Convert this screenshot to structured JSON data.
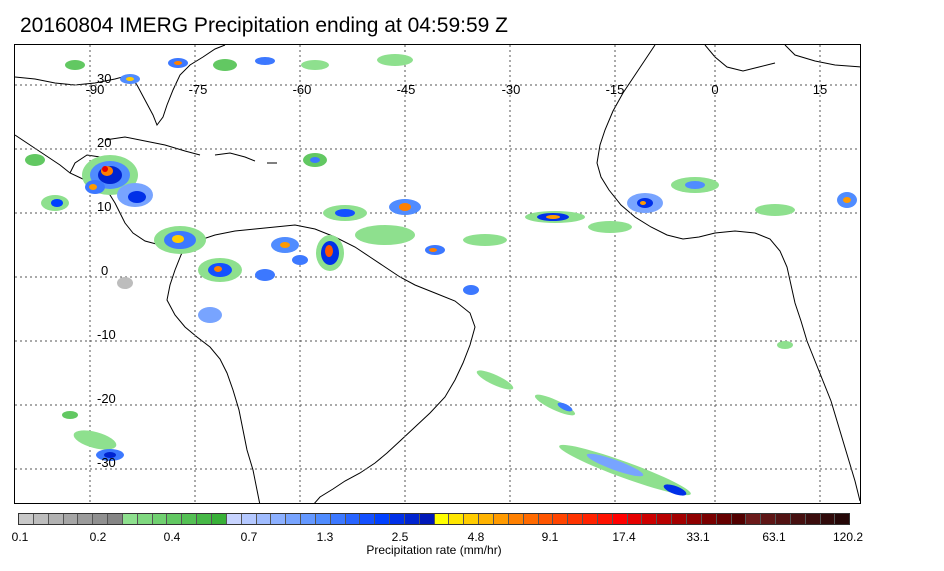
{
  "title": "20160804 IMERG Precipitation ending at 04:59:59 Z",
  "map": {
    "lon_labels": [
      "-90",
      "-75",
      "-60",
      "-45",
      "-30",
      "-15",
      "0",
      "15"
    ],
    "lat_labels": [
      "30",
      "20",
      "10",
      "0",
      "-10",
      "-20",
      "-30"
    ]
  },
  "colorbar": {
    "label": "Precipitation rate (mm/hr)",
    "tick_labels": [
      "0.1",
      "0.2",
      "0.4",
      "0.7",
      "1.3",
      "2.5",
      "4.8",
      "9.1",
      "17.4",
      "33.1",
      "63.1",
      "120.2"
    ],
    "colors": [
      "#c8c8c8",
      "#bdbdbd",
      "#b2b2b2",
      "#a6a6a6",
      "#9b9b9b",
      "#909090",
      "#858585",
      "#8ee08e",
      "#7fd87f",
      "#70d070",
      "#62c862",
      "#54c054",
      "#46b846",
      "#38b038",
      "#c8d4ff",
      "#b4c8ff",
      "#a0bcff",
      "#8cb0ff",
      "#78a4ff",
      "#6498ff",
      "#508cff",
      "#3c78ff",
      "#2864ff",
      "#1450ff",
      "#0040ff",
      "#0030e8",
      "#0024d0",
      "#0018b8",
      "#ffff00",
      "#ffe600",
      "#ffcc00",
      "#ffb300",
      "#ff9a00",
      "#ff8000",
      "#ff6a00",
      "#ff5500",
      "#ff4400",
      "#ff3300",
      "#ff2200",
      "#ff1100",
      "#ff0000",
      "#e60000",
      "#cc0000",
      "#b80000",
      "#a30000",
      "#8f0000",
      "#7a0000",
      "#660000",
      "#520000",
      "#6b1a1a",
      "#5e1616",
      "#521313",
      "#461010",
      "#3b0d0d",
      "#300a0a",
      "#250707"
    ]
  }
}
